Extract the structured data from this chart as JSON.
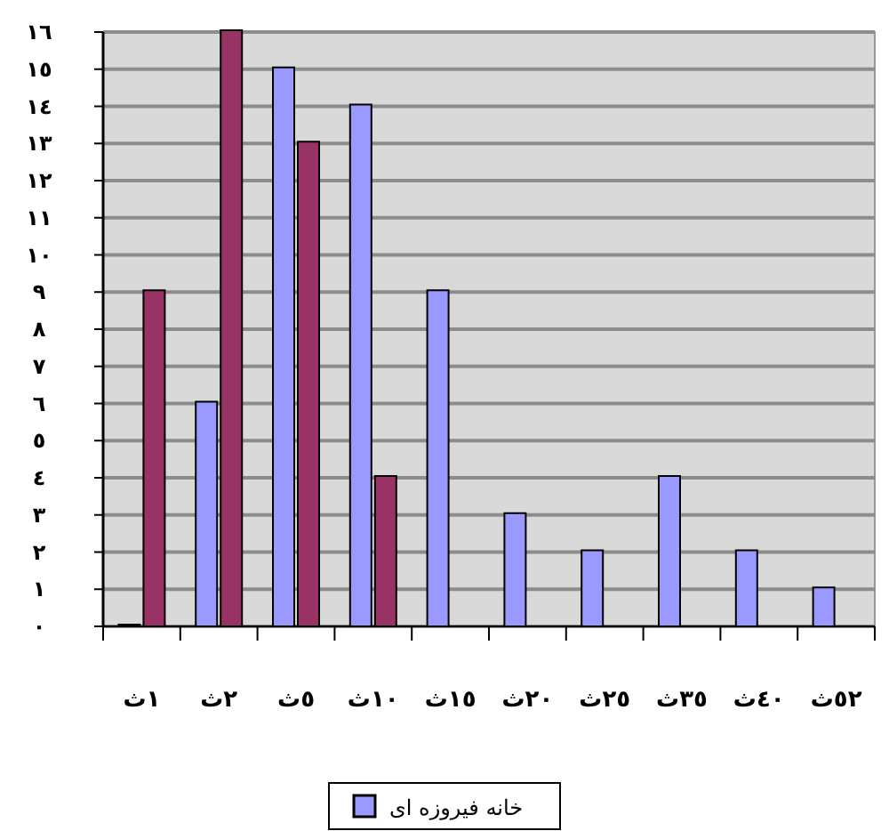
{
  "chart_data": {
    "type": "bar",
    "categories": [
      "١ث",
      "٢ث",
      "٥ث",
      "١٠ث",
      "١٥ث",
      "٢٠ث",
      "٢٥ث",
      "٣٥ث",
      "٤٠ث",
      "٥٢ث"
    ],
    "series": [
      {
        "name": "خانه فیروزه ای",
        "color": "#9999ff",
        "values": [
          0,
          6,
          15,
          14,
          9,
          3,
          2,
          4,
          2,
          1
        ]
      },
      {
        "color": "#993366",
        "values": [
          9,
          16,
          13,
          4,
          null,
          null,
          null,
          null,
          null,
          null
        ]
      }
    ],
    "ylim": [
      0,
      16
    ],
    "yticks": [
      {
        "value": 0,
        "label": "٠"
      },
      {
        "value": 1,
        "label": "١"
      },
      {
        "value": 2,
        "label": "٢"
      },
      {
        "value": 3,
        "label": "٣"
      },
      {
        "value": 4,
        "label": "٤"
      },
      {
        "value": 5,
        "label": "٥"
      },
      {
        "value": 6,
        "label": "٦"
      },
      {
        "value": 7,
        "label": "٧"
      },
      {
        "value": 8,
        "label": "٨"
      },
      {
        "value": 9,
        "label": "٩"
      },
      {
        "value": 10,
        "label": "١٠"
      },
      {
        "value": 11,
        "label": "١١"
      },
      {
        "value": 12,
        "label": "١٢"
      },
      {
        "value": 13,
        "label": "١٣"
      },
      {
        "value": 14,
        "label": "١٤"
      },
      {
        "value": 15,
        "label": "١٥"
      },
      {
        "value": 16,
        "label": "١٦"
      }
    ],
    "grid": "y",
    "legend": "bottom"
  }
}
